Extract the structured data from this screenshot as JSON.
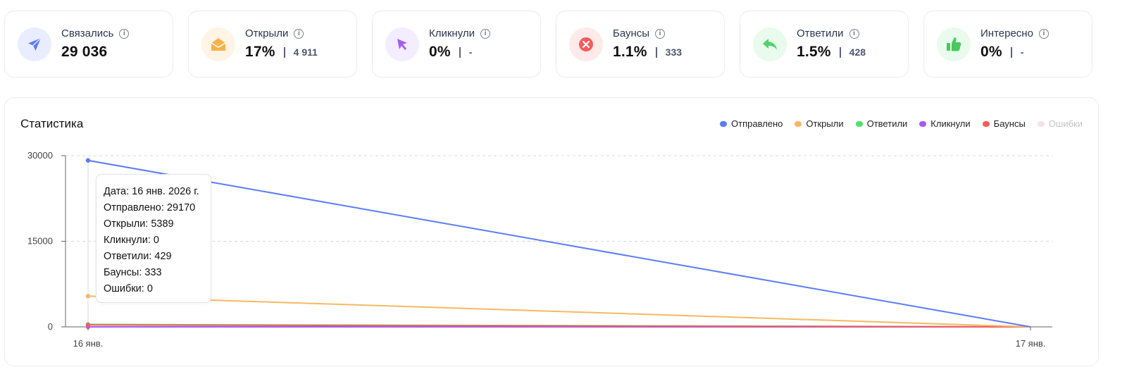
{
  "stats": [
    {
      "label": "Связались",
      "value": "29 036",
      "sub": "",
      "icon": "paper-plane-icon",
      "color": "#5b7cf7",
      "bg": "#e9edff"
    },
    {
      "label": "Открыли",
      "value": "17%",
      "sub": "4 911",
      "icon": "open-envelope-icon",
      "color": "#f8b24a",
      "bg": "#fff4e5"
    },
    {
      "label": "Кликнули",
      "value": "0%",
      "sub": "-",
      "icon": "cursor-icon",
      "color": "#a65bf2",
      "bg": "#f4ecff"
    },
    {
      "label": "Баунсы",
      "value": "1.1%",
      "sub": "333",
      "icon": "x-circle-icon",
      "color": "#f25d5d",
      "bg": "#ffeaea"
    },
    {
      "label": "Ответили",
      "value": "1.5%",
      "sub": "428",
      "icon": "reply-icon",
      "color": "#4fd26a",
      "bg": "#e8fbec"
    },
    {
      "label": "Интересно",
      "value": "0%",
      "sub": "-",
      "icon": "thumbs-up-icon",
      "color": "#47c95f",
      "bg": "#e8fbec"
    }
  ],
  "chart": {
    "title": "Статистика",
    "legend": [
      {
        "label": "Отправлено",
        "color": "#5b7cf7"
      },
      {
        "label": "Открыли",
        "color": "#f8b863"
      },
      {
        "label": "Ответили",
        "color": "#4fe06a"
      },
      {
        "label": "Кликнули",
        "color": "#a65bf2"
      },
      {
        "label": "Баунсы",
        "color": "#f25d5d"
      },
      {
        "label": "Ошибки",
        "color": "#f7e1e6"
      }
    ],
    "tooltip": {
      "date": "Дата: 16 янв. 2026 г.",
      "sent": "Отправлено: 29170",
      "opened": "Открыли: 5389",
      "clicked": "Кликнули: 0",
      "replied": "Ответили: 429",
      "bounces": "Баунсы: 333",
      "errors": "Ошибки: 0"
    }
  },
  "chart_data": {
    "type": "line",
    "x": [
      "16 янв.",
      "17 янв."
    ],
    "yticks": [
      "30000",
      "15000",
      "0"
    ],
    "ylim": [
      0,
      30000
    ],
    "grid": true,
    "legend_position": "top-right",
    "series": [
      {
        "name": "Отправлено",
        "values": [
          29170,
          0
        ]
      },
      {
        "name": "Открыли",
        "values": [
          5389,
          0
        ]
      },
      {
        "name": "Ответили",
        "values": [
          429,
          0
        ]
      },
      {
        "name": "Кликнули",
        "values": [
          0,
          0
        ]
      },
      {
        "name": "Баунсы",
        "values": [
          333,
          0
        ]
      },
      {
        "name": "Ошибки",
        "values": [
          0,
          0
        ]
      }
    ]
  }
}
